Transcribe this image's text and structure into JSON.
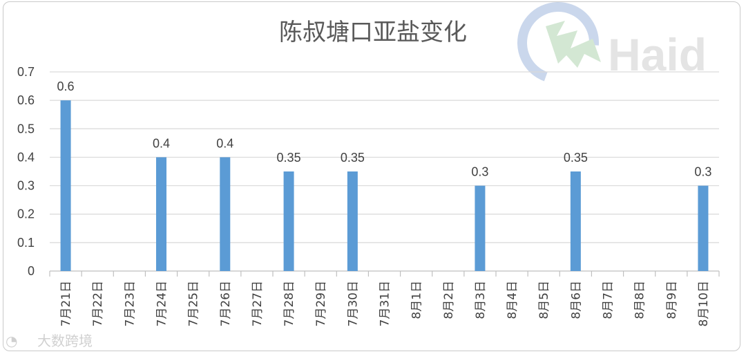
{
  "chart_data": {
    "type": "bar",
    "title": "陈叔塘口亚盐变化",
    "categories": [
      "7月21日",
      "7月22日",
      "7月23日",
      "7月24日",
      "7月25日",
      "7月26日",
      "7月27日",
      "7月28日",
      "7月29日",
      "7月30日",
      "7月31日",
      "8月1日",
      "8月2日",
      "8月3日",
      "8月4日",
      "8月5日",
      "8月6日",
      "8月7日",
      "8月8日",
      "8月9日",
      "8月10日"
    ],
    "values": [
      0.6,
      null,
      null,
      0.4,
      null,
      0.4,
      null,
      0.35,
      null,
      0.35,
      null,
      null,
      null,
      0.3,
      null,
      null,
      0.35,
      null,
      null,
      null,
      0.3
    ],
    "data_labels": [
      "0.6",
      "",
      "",
      "0.4",
      "",
      "0.4",
      "",
      "0.35",
      "",
      "0.35",
      "",
      "",
      "",
      "0.3",
      "",
      "",
      "0.35",
      "",
      "",
      "",
      "0.3"
    ],
    "ylim": [
      0,
      0.7
    ],
    "yticks": [
      "0",
      "0.1",
      "0.2",
      "0.3",
      "0.4",
      "0.5",
      "0.6",
      "0.7"
    ],
    "grid": true,
    "xlabel": "",
    "ylabel": "",
    "colors": {
      "bar": "#5b9bd5",
      "grid": "#d9d9d9",
      "text": "#404040",
      "title": "#595959"
    }
  },
  "logo": {
    "text": "Haid"
  },
  "watermark": {
    "text": "大数跨境"
  }
}
